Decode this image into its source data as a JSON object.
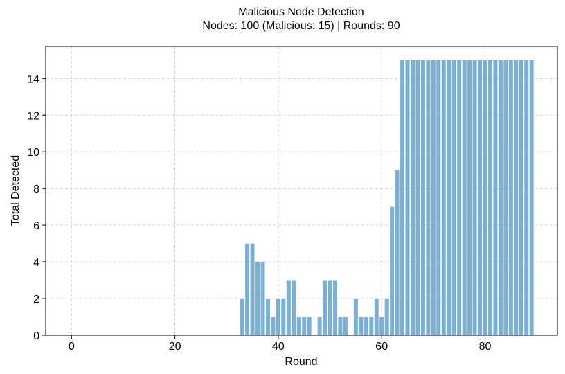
{
  "chart_data": {
    "type": "bar",
    "title": "Malicious Node Detection",
    "subtitle": "Nodes: 100 (Malicious: 15) | Rounds: 90",
    "xlabel": "Round",
    "ylabel": "Total Detected",
    "xlim": [
      -5,
      94
    ],
    "ylim": [
      0,
      15.75
    ],
    "xticks": [
      0,
      20,
      40,
      60,
      80
    ],
    "yticks": [
      0,
      2,
      4,
      6,
      8,
      10,
      12,
      14
    ],
    "grid": true,
    "bar_color": "#7bafd4",
    "x": [
      0,
      1,
      2,
      3,
      4,
      5,
      6,
      7,
      8,
      9,
      10,
      11,
      12,
      13,
      14,
      15,
      16,
      17,
      18,
      19,
      20,
      21,
      22,
      23,
      24,
      25,
      26,
      27,
      28,
      29,
      30,
      31,
      32,
      33,
      34,
      35,
      36,
      37,
      38,
      39,
      40,
      41,
      42,
      43,
      44,
      45,
      46,
      47,
      48,
      49,
      50,
      51,
      52,
      53,
      54,
      55,
      56,
      57,
      58,
      59,
      60,
      61,
      62,
      63,
      64,
      65,
      66,
      67,
      68,
      69,
      70,
      71,
      72,
      73,
      74,
      75,
      76,
      77,
      78,
      79,
      80,
      81,
      82,
      83,
      84,
      85,
      86,
      87,
      88,
      89
    ],
    "values": [
      0,
      0,
      0,
      0,
      0,
      0,
      0,
      0,
      0,
      0,
      0,
      0,
      0,
      0,
      0,
      0,
      0,
      0,
      0,
      0,
      0,
      0,
      0,
      0,
      0,
      0,
      0,
      0,
      0,
      0,
      0,
      0,
      0,
      2,
      5,
      5,
      4,
      4,
      2,
      1,
      2,
      2,
      3,
      3,
      1,
      1,
      1,
      0,
      1,
      3,
      3,
      3,
      1,
      1,
      0,
      2,
      1,
      1,
      1,
      2,
      1,
      2,
      7,
      9,
      15,
      15,
      15,
      15,
      15,
      15,
      15,
      15,
      15,
      15,
      15,
      15,
      15,
      15,
      15,
      15,
      15,
      15,
      15,
      15,
      15,
      15,
      15,
      15,
      15,
      15
    ]
  }
}
